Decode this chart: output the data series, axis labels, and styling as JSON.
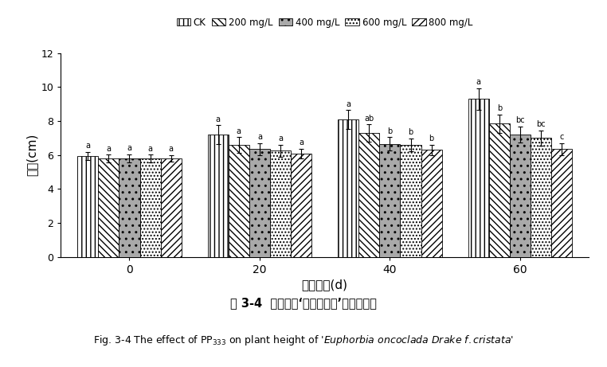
{
  "groups": [
    0,
    20,
    40,
    60
  ],
  "group_labels": [
    "0",
    "20",
    "40",
    "60"
  ],
  "series_labels": [
    "CK",
    "200 mg/L",
    "400 mg/L",
    "600 mg/L",
    "800 mg/L"
  ],
  "values": [
    [
      5.95,
      5.8,
      5.8,
      5.8,
      5.8
    ],
    [
      7.2,
      6.6,
      6.35,
      6.25,
      6.1
    ],
    [
      8.1,
      7.3,
      6.65,
      6.6,
      6.3
    ],
    [
      9.3,
      7.85,
      7.2,
      7.0,
      6.35
    ]
  ],
  "errors": [
    [
      0.25,
      0.22,
      0.25,
      0.22,
      0.2
    ],
    [
      0.55,
      0.45,
      0.35,
      0.35,
      0.28
    ],
    [
      0.55,
      0.5,
      0.4,
      0.38,
      0.32
    ],
    [
      0.65,
      0.55,
      0.48,
      0.45,
      0.35
    ]
  ],
  "sig_labels": [
    [
      "a",
      "a",
      "a",
      "a",
      "a"
    ],
    [
      "a",
      "a",
      "a",
      "a",
      "a"
    ],
    [
      "a",
      "ab",
      "b",
      "b",
      "b"
    ],
    [
      "a",
      "b",
      "bc",
      "bc",
      "c"
    ]
  ],
  "ylabel": "株高(cm)",
  "xlabel": "处理天数(d)",
  "ylim": [
    0,
    12
  ],
  "yticks": [
    0,
    2,
    4,
    6,
    8,
    10,
    12
  ],
  "hatch_list": [
    "|||",
    "\\\\\\\\",
    "..",
    "....",
    "////"
  ],
  "facecolor_list": [
    "white",
    "white",
    "darkgray",
    "white",
    "white"
  ],
  "fig_caption_cn": "图 3-4  多效唑对‘膨珊瑚缀化’株高的影响"
}
